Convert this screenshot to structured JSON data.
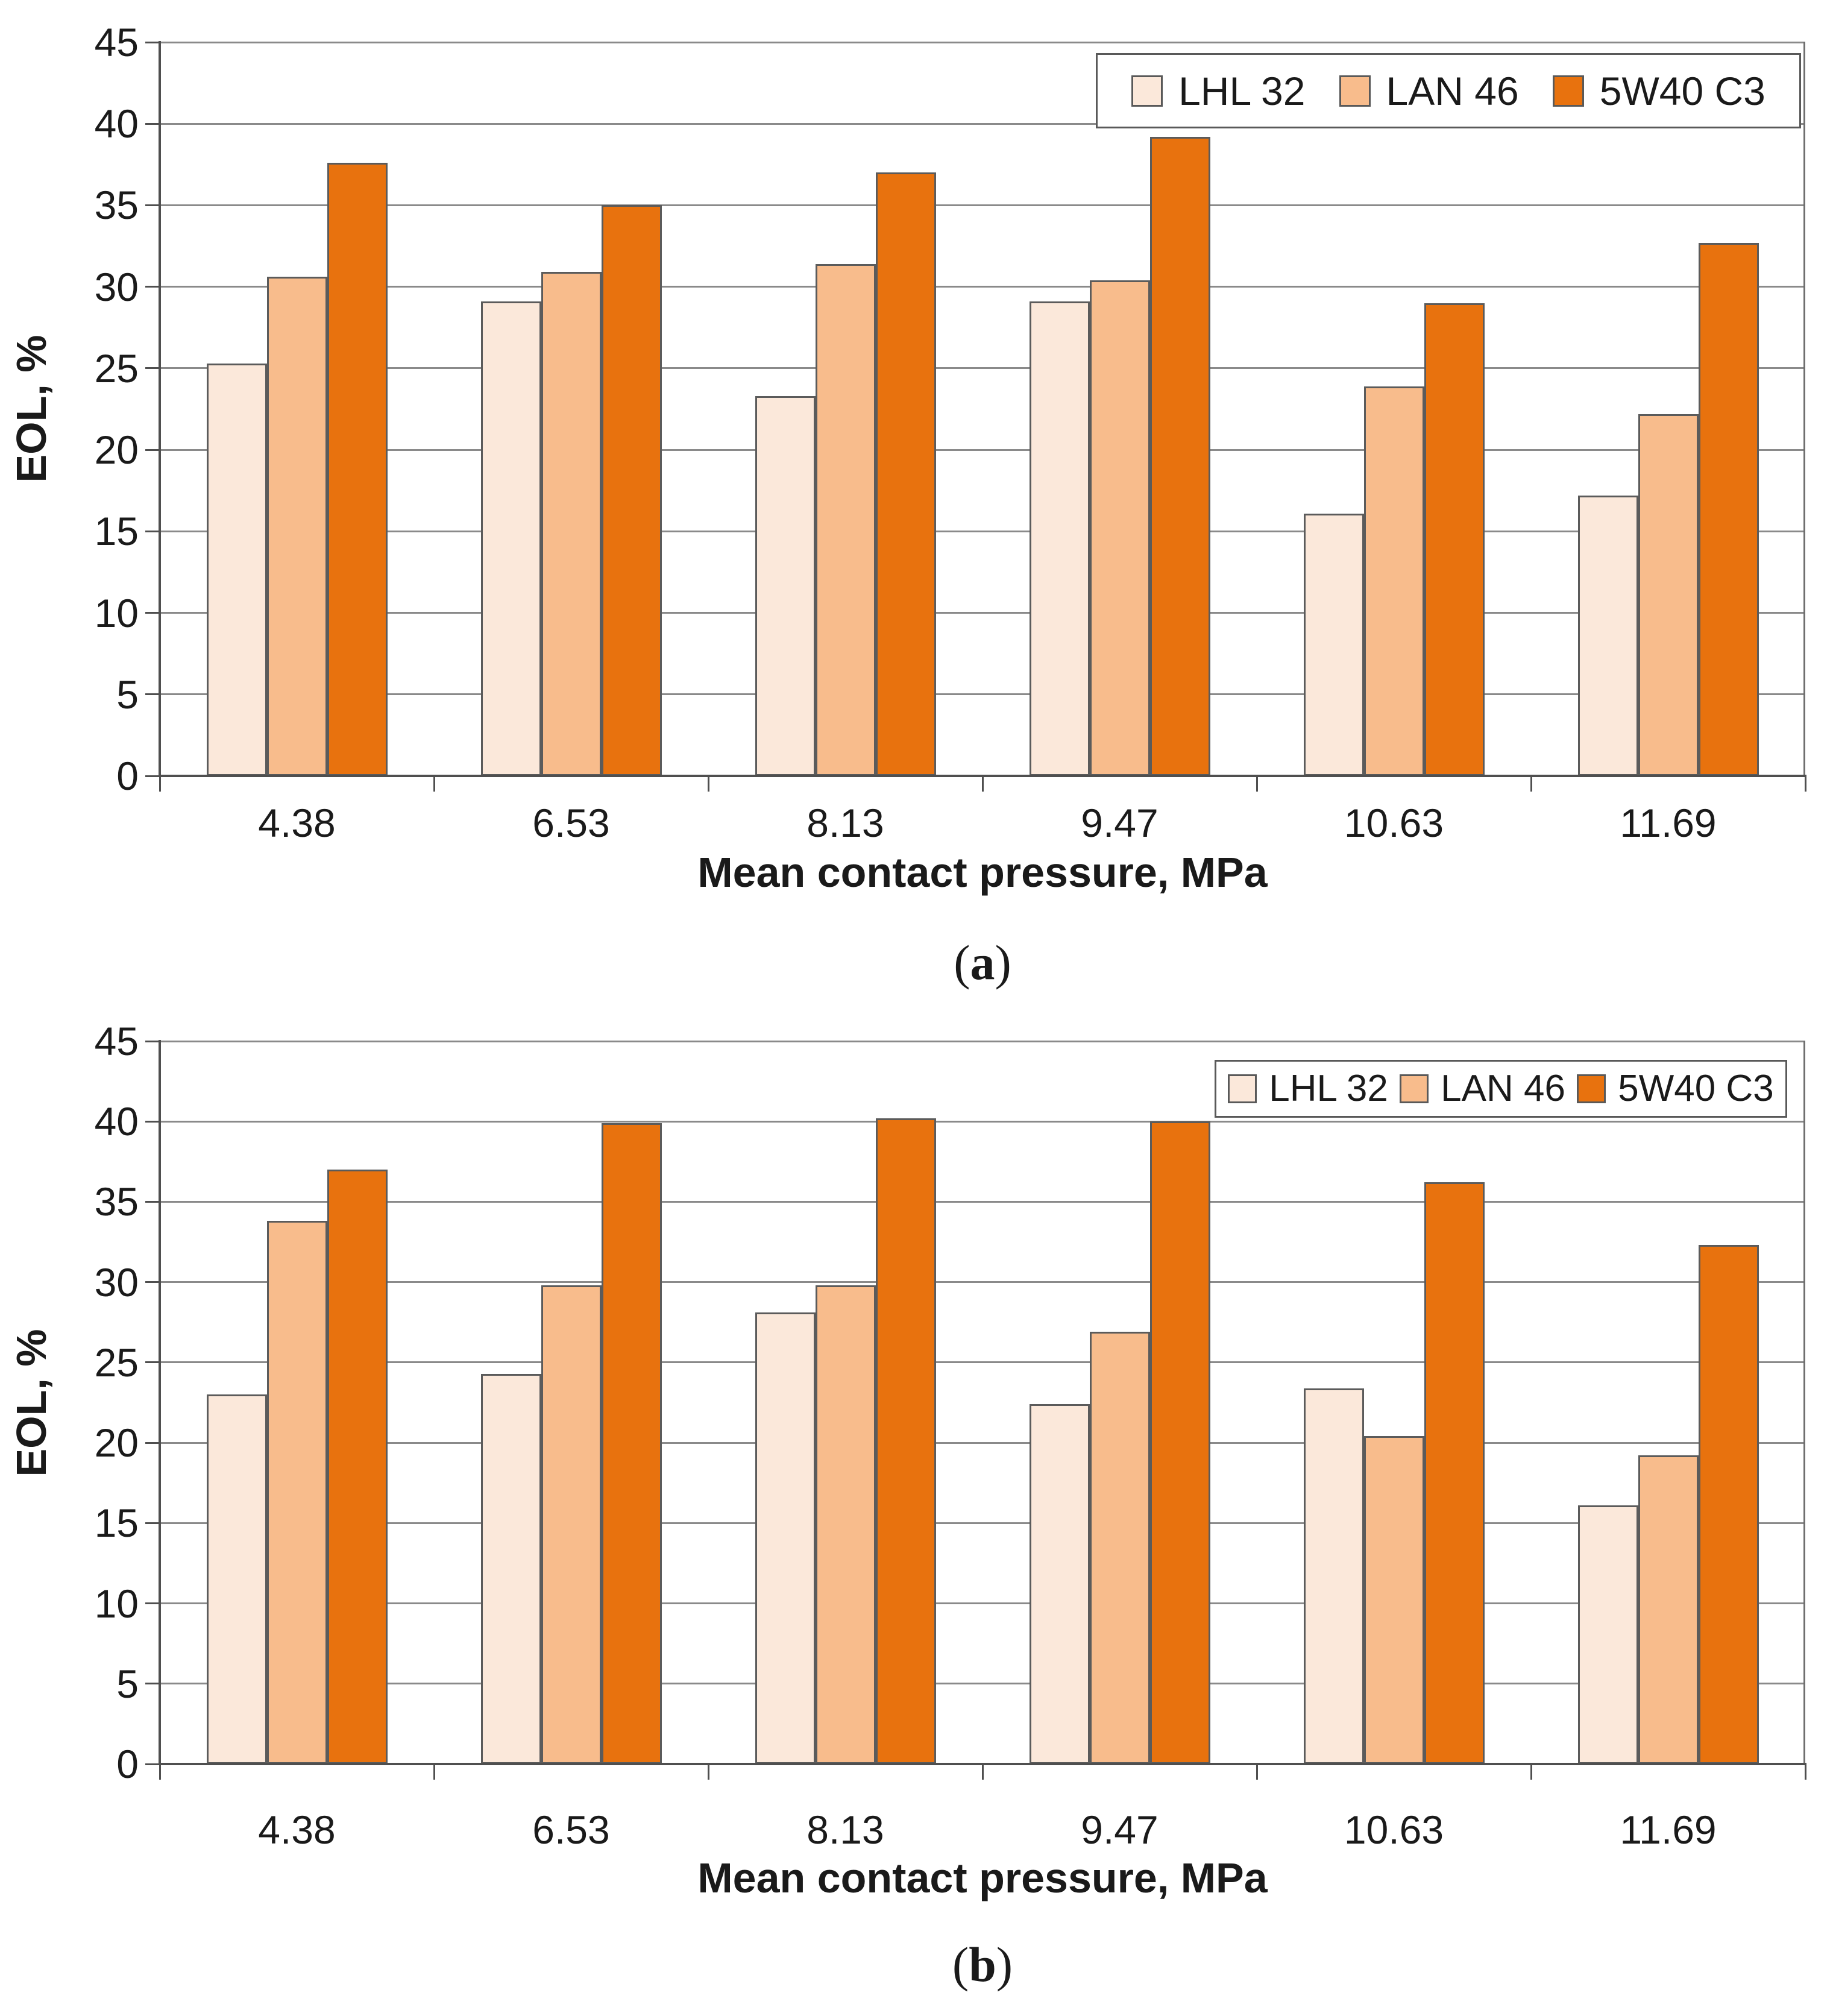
{
  "palette": {
    "background": "#ffffff",
    "gridline": "#8a8a8a",
    "axis": "#4f4f4f",
    "bar_border": "#5b5b5b",
    "text": "#1a1a1a",
    "legend_border": "#595959"
  },
  "chart_data": [
    {
      "id": "a",
      "type": "bar",
      "caption": {
        "open": "(",
        "letter": "a",
        "close": ")"
      },
      "xlabel": "Mean contact pressure, MPa",
      "ylabel": "EOL, %",
      "ylim": [
        0,
        45
      ],
      "ytick_step": 5,
      "ytick_labels": [
        "0",
        "5",
        "10",
        "15",
        "20",
        "25",
        "30",
        "35",
        "40",
        "45"
      ],
      "grid": true,
      "legend_position": "top-right",
      "categories": [
        "4.38",
        "6.53",
        "8.13",
        "9.47",
        "10.63",
        "11.69"
      ],
      "series": [
        {
          "name": "LHL 32",
          "color": "#FBE8DA",
          "values": [
            25.3,
            29.1,
            23.3,
            29.1,
            16.1,
            17.2
          ]
        },
        {
          "name": "LAN 46",
          "color": "#F8BC8C",
          "values": [
            30.6,
            30.9,
            31.4,
            30.4,
            23.9,
            22.2
          ]
        },
        {
          "name": "5W40 C3",
          "color": "#E8720E",
          "values": [
            37.6,
            35.0,
            37.0,
            39.2,
            29.0,
            32.7
          ]
        }
      ]
    },
    {
      "id": "b",
      "type": "bar",
      "caption": {
        "open": "(",
        "letter": "b",
        "close": ")"
      },
      "xlabel": "Mean contact pressure, MPa",
      "ylabel": "EOL, %",
      "ylim": [
        0,
        45
      ],
      "ytick_step": 5,
      "ytick_labels": [
        "0",
        "5",
        "10",
        "15",
        "20",
        "25",
        "30",
        "35",
        "40",
        "45"
      ],
      "grid": true,
      "legend_position": "top-right",
      "categories": [
        "4.38",
        "6.53",
        "8.13",
        "9.47",
        "10.63",
        "11.69"
      ],
      "series": [
        {
          "name": "LHL 32",
          "color": "#FBE8DA",
          "values": [
            23.0,
            24.3,
            28.1,
            22.4,
            23.4,
            16.1
          ]
        },
        {
          "name": "LAN 46",
          "color": "#F8BC8C",
          "values": [
            33.8,
            29.8,
            29.8,
            26.9,
            20.4,
            19.2
          ]
        },
        {
          "name": "5W40 C3",
          "color": "#E8720E",
          "values": [
            37.0,
            39.9,
            40.2,
            40.0,
            36.2,
            32.3
          ]
        }
      ]
    }
  ]
}
